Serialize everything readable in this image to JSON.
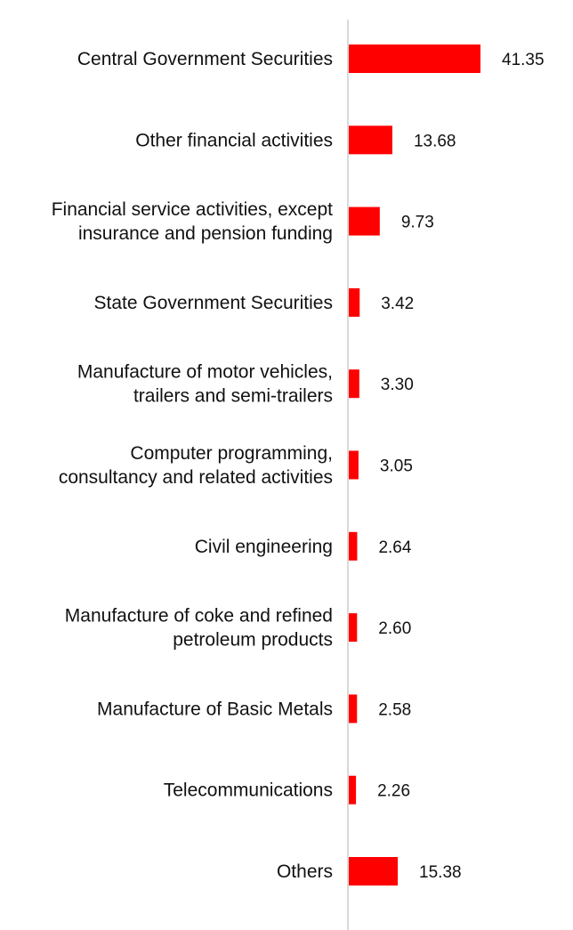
{
  "chart_data": {
    "type": "bar",
    "orientation": "horizontal",
    "title": "",
    "xlabel": "",
    "ylabel": "",
    "categories": [
      "Central Government Securities",
      "Other financial activities",
      "Financial service activities, except insurance and pension funding",
      "State Government Securities",
      "Manufacture of motor vehicles, trailers and semi-trailers",
      "Computer programming, consultancy and related activities",
      "Civil engineering",
      "Manufacture of coke and refined petroleum products",
      "Manufacture of Basic Metals",
      "Telecommunications",
      "Others"
    ],
    "category_lines": [
      [
        "Central Government Securities"
      ],
      [
        "Other financial activities"
      ],
      [
        "Financial service activities, except",
        "insurance and pension funding"
      ],
      [
        "State Government Securities"
      ],
      [
        "Manufacture of motor vehicles,",
        "trailers and semi-trailers"
      ],
      [
        "Computer programming,",
        "consultancy and related activities"
      ],
      [
        "Civil engineering"
      ],
      [
        "Manufacture of coke and refined",
        "petroleum products"
      ],
      [
        "Manufacture of Basic Metals"
      ],
      [
        "Telecommunications"
      ],
      [
        "Others"
      ]
    ],
    "values": [
      41.35,
      13.68,
      9.73,
      3.42,
      3.3,
      3.05,
      2.64,
      2.6,
      2.58,
      2.26,
      15.38
    ],
    "value_labels": [
      "41.35",
      "13.68",
      "9.73",
      "3.42",
      "3.30",
      "3.05",
      "2.64",
      "2.60",
      "2.58",
      "2.26",
      "15.38"
    ],
    "xlim": [
      0,
      41.35
    ],
    "grid": false,
    "legend": "none",
    "bar_color": "#ff0000",
    "axis_color": "#d9d9d9"
  }
}
